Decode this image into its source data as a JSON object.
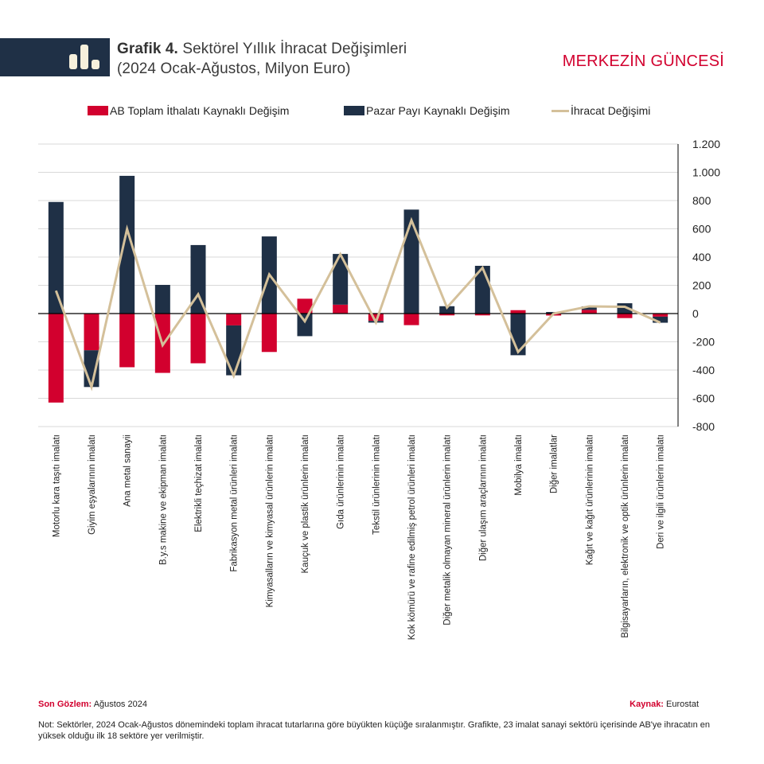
{
  "header": {
    "title_bold": "Grafik 4.",
    "title_line1": "Sektörel Yıllık İhracat Değişimleri",
    "title_line2": "(2024 Ocak-Ağustos, Milyon Euro)",
    "brand": "MERKEZİN GÜNCESİ",
    "icon": "bar-chart-icon"
  },
  "colors": {
    "eu_import": "#d2002e",
    "market_share": "#1f3046",
    "export_change": "#d4c09a",
    "header_band": "#1f3046",
    "brand": "#d2002e"
  },
  "footer": {
    "last_obs_label": "Son Gözlem:",
    "last_obs_value": "Ağustos 2024",
    "source_label": "Kaynak:",
    "source_value": "Eurostat",
    "note": "Not: Sektörler, 2024 Ocak-Ağustos dönemindeki toplam ihracat tutarlarına göre büyükten küçüğe sıralanmıştır. Grafikte, 23 imalat sanayi sektörü içerisinde AB'ye ihracatın en yüksek olduğu ilk 18 sektöre yer verilmiştir."
  },
  "chart_data": {
    "type": "bar",
    "stacked": true,
    "title": "Sektörel Yıllık İhracat Değişimleri (2024 Ocak-Ağustos, Milyon Euro)",
    "xlabel": "",
    "ylabel": "",
    "ylim": [
      -800,
      1200
    ],
    "yticks": [
      1200,
      1000,
      800,
      600,
      400,
      200,
      0,
      -200,
      -400,
      -600,
      -800
    ],
    "ytick_labels": [
      "1.200",
      "1.000",
      "800",
      "600",
      "400",
      "200",
      "0",
      "-200",
      "-400",
      "-600",
      "-800"
    ],
    "y_axis_position": "right",
    "grid": true,
    "legend_position": "top",
    "categories": [
      "Motorlu kara taşıtı imalatı",
      "Giyim eşyalarının imalatı",
      "Ana metal sanayii",
      "B.y.s makine ve ekipman imalatı",
      "Elektrikli teçhizat imalatı",
      "Fabrikasyon metal ürünleri imalatı",
      "Kimyasalların ve kimyasal ürünlerin imalatı",
      "Kauçuk ve plastik ürünlerin imalatı",
      "Gıda ürünlerinin imalatı",
      "Tekstil ürünlerinin imalatı",
      "Kok kömürü ve rafine edilmiş petrol ürünleri imalatı",
      "Diğer metalik olmayan mineral ürünlerin imalatı",
      "Diğer ulaşım araçlarının imalatı",
      "Mobilya imalatı",
      "Diğer imalatlar",
      "Kağıt ve kağıt ürünlerinin imalatı",
      "Bilgisayarların, elektronik ve optik ürünlerin imalatı",
      "Deri ve ilgili ürünlerin imalatı"
    ],
    "series": [
      {
        "name": "AB Toplam İthalatı Kaynaklı Değişim",
        "kind": "bar",
        "values": [
          -630,
          -260,
          -380,
          -420,
          -352,
          -84,
          -272,
          105,
          63,
          -52,
          -82,
          -13,
          -13,
          24,
          -14,
          26,
          -32,
          -22
        ]
      },
      {
        "name": "Pazar Payı Kaynaklı Değişim",
        "kind": "bar",
        "values": [
          790,
          -260,
          975,
          203,
          485,
          -353,
          546,
          -160,
          359,
          -12,
          736,
          52,
          338,
          -295,
          11,
          25,
          73,
          -43
        ]
      },
      {
        "name": "İhracat Değişimi",
        "kind": "line",
        "values": [
          162,
          -520,
          598,
          -224,
          136,
          -440,
          277,
          -55,
          420,
          -62,
          660,
          43,
          324,
          -272,
          0,
          51,
          48,
          -64
        ]
      }
    ]
  }
}
